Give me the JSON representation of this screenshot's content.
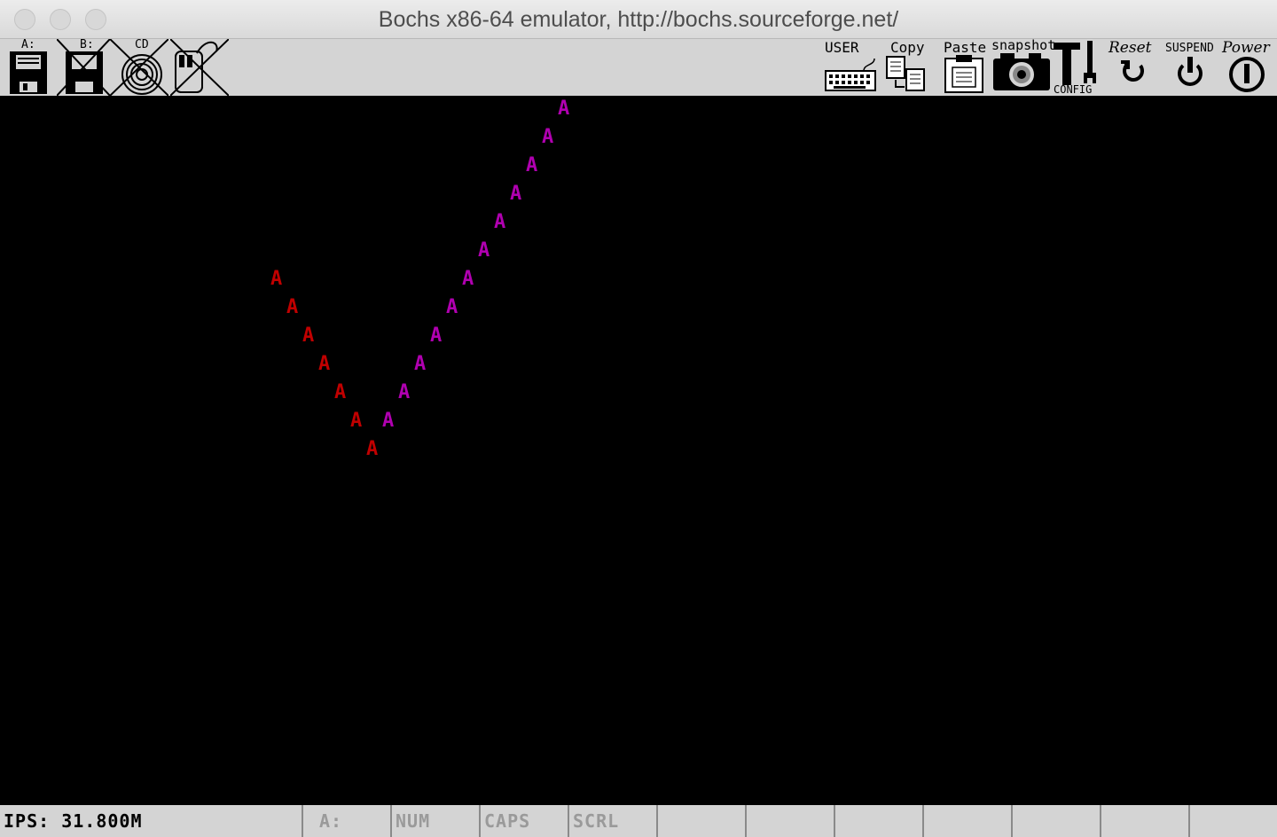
{
  "window": {
    "title": "Bochs x86-64 emulator, http://bochs.sourceforge.net/"
  },
  "toolbar": {
    "floppy_a": "A:",
    "floppy_b": "B:",
    "cdrom": "CD",
    "user": "USER",
    "copy": "Copy",
    "paste": "Paste",
    "snapshot": "snapshot",
    "config": "CONFIG",
    "reset": "Reset",
    "suspend": "SUSPEND",
    "power": "Power"
  },
  "screen": {
    "glyph": "A",
    "colors": {
      "red": "#c00000",
      "magenta": "#b000b0"
    },
    "red_count": 7,
    "magenta_count": 12
  },
  "statusbar": {
    "ips": "IPS: 31.800M",
    "drive": "A:",
    "num": "NUM",
    "caps": "CAPS",
    "scrl": "SCRL"
  }
}
